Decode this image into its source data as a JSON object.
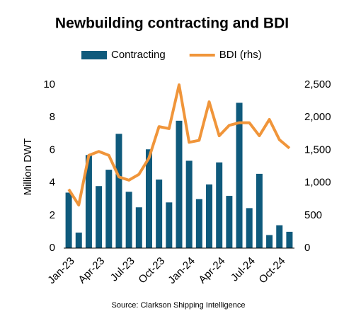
{
  "chart_data": {
    "type": "bar_line",
    "title": "Newbuilding contracting and BDI",
    "y_label": "Million DWT",
    "source": "Source: Clarkson Shipping Intelligence",
    "categories": [
      "Jan-23",
      null,
      null,
      "Apr-23",
      null,
      null,
      "Jul-23",
      null,
      null,
      "Oct-23",
      null,
      null,
      "Jan-24",
      null,
      null,
      "Apr-24",
      null,
      null,
      "Jul-24",
      null,
      null,
      "Oct-24",
      null
    ],
    "series": [
      {
        "name": "Contracting",
        "type": "bar",
        "color": "#0f5a7c",
        "values": [
          3.4,
          0.95,
          5.7,
          3.8,
          4.8,
          7.0,
          3.45,
          2.5,
          6.05,
          4.2,
          2.8,
          7.8,
          5.35,
          3.0,
          3.9,
          5.25,
          3.2,
          8.9,
          2.45,
          4.55,
          0.8,
          1.4,
          1.0
        ]
      },
      {
        "name": "BDI (rhs)",
        "type": "line",
        "axis": "y2",
        "color": "#f0953a",
        "values": [
          900,
          660,
          1420,
          1480,
          1420,
          1090,
          1040,
          1130,
          1380,
          1860,
          1830,
          2500,
          1620,
          1650,
          2240,
          1720,
          1880,
          1920,
          1920,
          1720,
          1970,
          1660,
          1530
        ]
      }
    ],
    "ylim": [
      0,
      10
    ],
    "yticks": [
      0,
      2,
      4,
      6,
      8,
      10
    ],
    "y2lim": [
      0,
      2500
    ],
    "y2ticks": [
      0,
      500,
      {
        "value": 1000,
        "label": "1,000"
      },
      {
        "value": 1500,
        "label": "1,500"
      },
      {
        "value": 2000,
        "label": "2,000"
      },
      {
        "value": 2500,
        "label": "2,500"
      }
    ],
    "legend": "top"
  }
}
